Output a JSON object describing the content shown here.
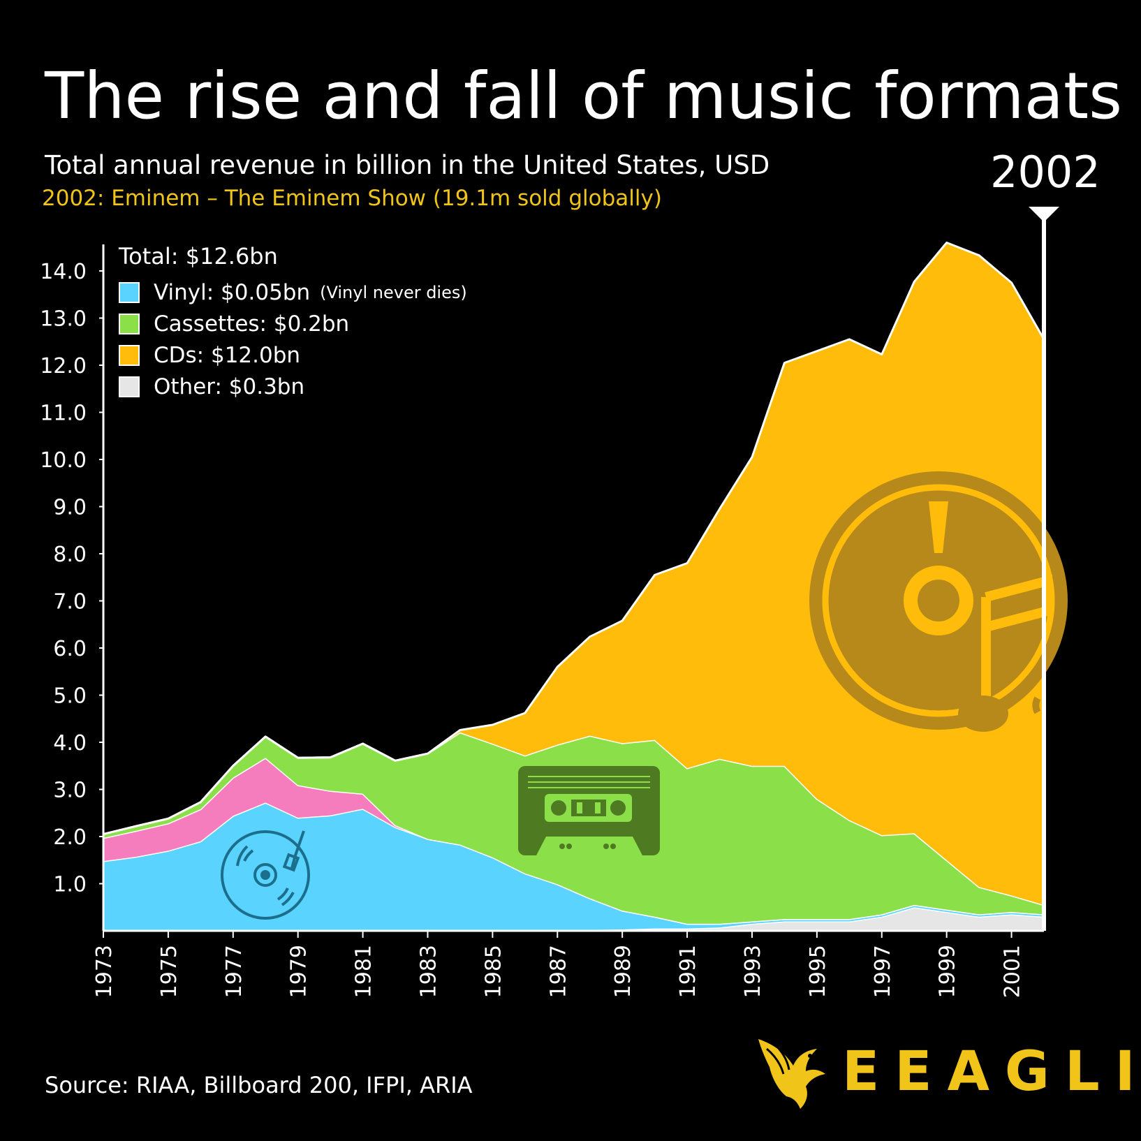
{
  "title": "The rise and fall of music formats",
  "subtitle": "Total annual revenue in billion in the United States, USD",
  "event": "2002: Eminem – The Eminem Show (19.1m sold globally)",
  "current_year": "2002",
  "legend": {
    "total": "Total: $12.6bn",
    "items": [
      {
        "label": "Vinyl: $0.05bn",
        "note": "(Vinyl never dies)",
        "color": "#5BD3FF"
      },
      {
        "label": "Cassettes: $0.2bn",
        "note": "",
        "color": "#8BE04A"
      },
      {
        "label": "CDs: $12.0bn",
        "note": "",
        "color": "#FFBC0A"
      },
      {
        "label": "Other: $0.3bn",
        "note": "",
        "color": "#E6E6E6"
      }
    ]
  },
  "source": "Source: RIAA, Billboard 200, IFPI, ARIA",
  "brand": "EEAGLI",
  "colors": {
    "background": "#000000",
    "vinyl": "#5BD3FF",
    "eight_track": "#F57DBE",
    "cassettes": "#8BE04A",
    "cds": "#FFBC0A",
    "other": "#E6E6E6",
    "accent": "#F0C419"
  },
  "icons": [
    "turntable-icon",
    "cassette-icon",
    "cd-music-icon",
    "eagle-logo-icon"
  ],
  "chart_data": {
    "type": "area",
    "stacked": true,
    "x": [
      1973,
      1974,
      1975,
      1976,
      1977,
      1978,
      1979,
      1980,
      1981,
      1982,
      1983,
      1984,
      1985,
      1986,
      1987,
      1988,
      1989,
      1990,
      1991,
      1992,
      1993,
      1994,
      1995,
      1996,
      1997,
      1998,
      1999,
      2000,
      2001,
      2002
    ],
    "series": [
      {
        "key": "other",
        "values": [
          0.02,
          0.02,
          0.02,
          0.02,
          0.02,
          0.02,
          0.02,
          0.02,
          0.02,
          0.02,
          0.02,
          0.02,
          0.02,
          0.02,
          0.02,
          0.02,
          0.03,
          0.05,
          0.05,
          0.07,
          0.15,
          0.2,
          0.2,
          0.2,
          0.3,
          0.5,
          0.4,
          0.3,
          0.35,
          0.3
        ]
      },
      {
        "key": "vinyl",
        "values": [
          1.46,
          1.55,
          1.68,
          1.88,
          2.42,
          2.7,
          2.38,
          2.43,
          2.57,
          2.18,
          1.93,
          1.81,
          1.54,
          1.2,
          0.97,
          0.67,
          0.4,
          0.25,
          0.1,
          0.08,
          0.05,
          0.05,
          0.05,
          0.05,
          0.05,
          0.05,
          0.05,
          0.05,
          0.05,
          0.05
        ]
      },
      {
        "key": "eight_track",
        "values": [
          0.49,
          0.55,
          0.58,
          0.68,
          0.81,
          0.95,
          0.69,
          0.52,
          0.32,
          0.04,
          0,
          0,
          0,
          0,
          0,
          0,
          0,
          0,
          0,
          0,
          0,
          0,
          0,
          0,
          0,
          0,
          0,
          0,
          0,
          0
        ]
      },
      {
        "key": "cassettes",
        "values": [
          0.08,
          0.1,
          0.1,
          0.15,
          0.25,
          0.45,
          0.58,
          0.71,
          1.06,
          1.37,
          1.81,
          2.38,
          2.41,
          2.5,
          2.96,
          3.45,
          3.55,
          3.75,
          3.3,
          3.5,
          3.3,
          3.25,
          2.55,
          2.1,
          1.68,
          1.52,
          1.05,
          0.58,
          0.35,
          0.2
        ]
      },
      {
        "key": "cds",
        "values": [
          0,
          0,
          0,
          0,
          0,
          0,
          0,
          0,
          0,
          0,
          0,
          0.05,
          0.4,
          0.9,
          1.65,
          2.1,
          2.6,
          3.5,
          4.35,
          5.3,
          6.55,
          8.55,
          9.5,
          10.2,
          10.2,
          11.7,
          13.1,
          13.4,
          13.0,
          12.0
        ]
      }
    ],
    "y_ticks": [
      "1.0",
      "2.0",
      "3.0",
      "4.0",
      "5.0",
      "6.0",
      "7.0",
      "8.0",
      "9.0",
      "10.0",
      "11.0",
      "12.0",
      "13.0",
      "14.0"
    ],
    "x_ticks": [
      "1973",
      "1975",
      "1977",
      "1979",
      "1981",
      "1983",
      "1985",
      "1987",
      "1989",
      "1991",
      "1993",
      "1995",
      "1997",
      "1999",
      "2001"
    ],
    "ylim": [
      0,
      14.6
    ],
    "xlim": [
      1973,
      2002
    ]
  }
}
